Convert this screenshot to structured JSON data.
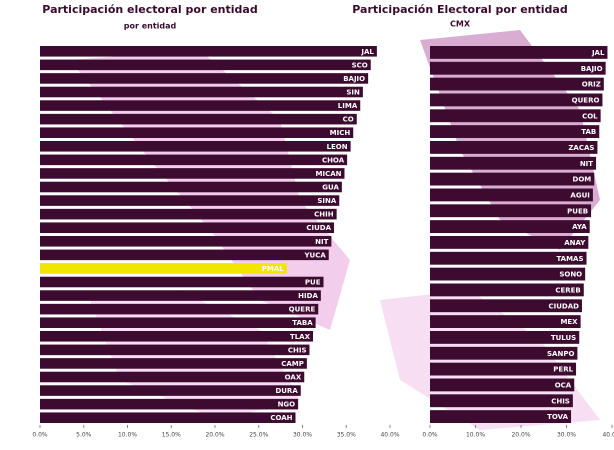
{
  "chart_data": [
    {
      "type": "barh",
      "title": "Participación electoral por entidad",
      "subtitle": "por entidad",
      "categories": [
        "JAL",
        "SCO",
        "BAJIO",
        "SIN",
        "LIMA",
        "CO",
        "MICH",
        "LEON",
        "CHOA",
        "MICAN",
        "GUA",
        "SINA",
        "CHIH",
        "CIUDA",
        "NIT",
        "YUCA",
        "PMAL",
        "PUE",
        "HIDA",
        "QUERE",
        "TABA",
        "TLAX",
        "CHIS",
        "CAMP",
        "OAX",
        "DURA",
        "NGO",
        "COAH"
      ],
      "values": [
        38.5,
        37.8,
        37.5,
        36.9,
        36.6,
        36.2,
        35.8,
        35.5,
        35.1,
        34.8,
        34.5,
        34.2,
        33.9,
        33.6,
        33.3,
        33.0,
        28.2,
        32.4,
        32.1,
        31.8,
        31.5,
        31.2,
        30.8,
        30.5,
        30.2,
        29.8,
        29.5,
        29.2
      ],
      "color": "#3d0b30",
      "highlight_index": 16,
      "highlight_color": "#f2e600",
      "xlim": [
        0,
        40
      ],
      "xticks": [
        {
          "value": 0,
          "label": "0.0%"
        },
        {
          "value": 5,
          "label": "5.0%"
        },
        {
          "value": 10,
          "label": "10.0%"
        },
        {
          "value": 15,
          "label": "15.0%"
        },
        {
          "value": 20,
          "label": "20.0%"
        },
        {
          "value": 25,
          "label": "25.0%"
        },
        {
          "value": 30,
          "label": "30.0%"
        },
        {
          "value": 35,
          "label": "35.0%"
        },
        {
          "value": 40,
          "label": "40.0%"
        }
      ]
    },
    {
      "type": "barh",
      "title": "Participación Electoral por entidad",
      "subtitle": "CMX",
      "categories": [
        "JAL",
        "BAJIO",
        "ORIZ",
        "QUERO",
        "COL",
        "TAB",
        "ZACAS",
        "NIT",
        "DOM",
        "AGUI",
        "PUEB",
        "AYA",
        "ANAY",
        "TAMAS",
        "SONO",
        "CEREB",
        "CIUDAD",
        "MEX",
        "TULUS",
        "SANPO",
        "PERL",
        "OCA",
        "CHIS",
        "TOVA"
      ],
      "values": [
        39.0,
        38.6,
        38.2,
        37.9,
        37.5,
        37.2,
        36.8,
        36.5,
        36.1,
        35.8,
        35.4,
        35.1,
        34.8,
        34.4,
        34.1,
        33.8,
        33.4,
        33.1,
        32.8,
        32.4,
        32.1,
        31.7,
        31.4,
        31.0
      ],
      "color": "#3d0b30",
      "xlim": [
        0,
        40
      ],
      "xticks": [
        {
          "value": 0,
          "label": "0.0%"
        },
        {
          "value": 10,
          "label": "10.0%"
        },
        {
          "value": 20,
          "label": "20.0%"
        },
        {
          "value": 30,
          "label": "30.0%"
        },
        {
          "value": 40,
          "label": "40.0%"
        }
      ]
    }
  ]
}
